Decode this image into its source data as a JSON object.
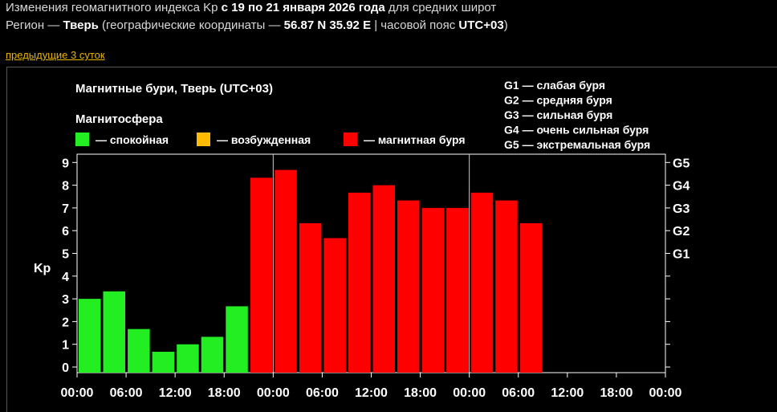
{
  "header": {
    "line1_prefix": "Изменения геомагнитного индекса Kp ",
    "line1_dates": "с 19 по 21 января 2026 года",
    "line1_suffix": " для средних широт",
    "line2_prefix": "Регион — ",
    "line2_city": "Тверь",
    "line2_mid": " (географические координаты — ",
    "line2_coords": "56.87 N 35.92 E",
    "line2_sep": " | часовой пояс ",
    "line2_tz": "UTC+03",
    "line2_end": ")"
  },
  "nav": {
    "prev_link": "предыдущие 3 суток"
  },
  "colors": {
    "quiet": "#22ee22",
    "active": "#ffbb00",
    "storm": "#ff0000",
    "background": "#000000",
    "text": "#ffffff"
  },
  "chart_data": {
    "type": "bar",
    "title": "Магнитные бури, Тверь (UTC+03)",
    "legend_title": "Магнитосфера",
    "legend": [
      {
        "label": "— спокойная",
        "color": "#22ee22"
      },
      {
        "label": "— возбужденная",
        "color": "#ffbb00"
      },
      {
        "label": "— магнитная буря",
        "color": "#ff0000"
      }
    ],
    "g_legend": [
      "G1 — слабая буря",
      "G2 — средняя буря",
      "G3 — сильная буря",
      "G4 — очень сильная буря",
      "G5 — экстремальная буря"
    ],
    "ylabel": "Kp",
    "ylim": [
      0,
      9
    ],
    "yticks": [
      0,
      1,
      2,
      3,
      4,
      5,
      6,
      7,
      8,
      9
    ],
    "right_ticks": [
      {
        "label": "G1",
        "value": 5
      },
      {
        "label": "G2",
        "value": 6
      },
      {
        "label": "G3",
        "value": 7
      },
      {
        "label": "G4",
        "value": 8
      },
      {
        "label": "G5",
        "value": 9
      }
    ],
    "xticks": [
      "00:00",
      "06:00",
      "12:00",
      "18:00",
      "00:00",
      "06:00",
      "12:00",
      "18:00",
      "00:00",
      "06:00",
      "12:00",
      "18:00",
      "00:00"
    ],
    "day_separators": [
      1,
      2
    ],
    "slots": 24,
    "values": [
      3.0,
      3.33,
      1.67,
      0.67,
      1.0,
      1.33,
      2.67,
      8.33,
      8.67,
      6.33,
      5.67,
      7.67,
      8.0,
      7.33,
      7.0,
      7.0,
      7.67,
      7.33,
      6.33
    ],
    "grid": false
  }
}
